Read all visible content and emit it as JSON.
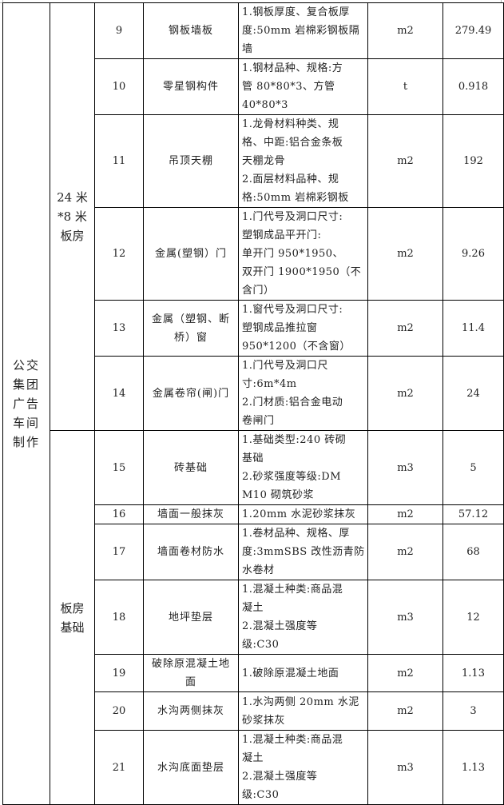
{
  "group": "公交\n集团\n广告\n车间\n制作",
  "subgroups": [
    {
      "label": "24 米\n*8 米\n板房",
      "rows": 6
    },
    {
      "label": "板房\n基础",
      "rows": 7
    }
  ],
  "rows": [
    {
      "no": "9",
      "name": "钢板墙板",
      "desc": "1.钢板厚度、复合板厚\n度:50mm 岩棉彩钢板隔\n墙",
      "unit": "m2",
      "qty": "279.49"
    },
    {
      "no": "10",
      "name": "零星钢构件",
      "desc": "1.钢材品种、规格:方\n管 80*80*3、方管\n40*80*3",
      "unit": "t",
      "qty": "0.918"
    },
    {
      "no": "11",
      "name": "吊顶天棚",
      "desc": "1.龙骨材料种类、规\n格、中距:铝合金条板\n天棚龙骨\n2.面层材料品种、规\n格:50mm 岩棉彩钢板",
      "unit": "m2",
      "qty": "192"
    },
    {
      "no": "12",
      "name": "金属(塑钢）门",
      "desc": "1.门代号及洞口尺寸:\n塑钢成品平开门:\n单开门 950*1950、\n双开门 1900*1950（不\n含门）",
      "unit": "m2",
      "qty": "9.26"
    },
    {
      "no": "13",
      "name": "金属（塑钢、断\n桥）窗",
      "desc": "1.窗代号及洞口尺寸:\n塑钢成品推拉窗\n950*1200（不含窗）",
      "unit": "m2",
      "qty": "11.4"
    },
    {
      "no": "14",
      "name": "金属卷帘(闸)门",
      "desc": "1.门代号及洞口尺\n寸:6m*4m\n2.门材质:铝合金电动\n卷闸门",
      "unit": "m2",
      "qty": "24"
    },
    {
      "no": "15",
      "name": "砖基础",
      "desc": "1.基础类型:240 砖砌\n基础\n2.砂浆强度等级:DM\nM10 砌筑砂浆",
      "unit": "m3",
      "qty": "5"
    },
    {
      "no": "16",
      "name": "墙面一般抹灰",
      "desc": "1.20mm 水泥砂浆抹灰",
      "unit": "m2",
      "qty": "57.12"
    },
    {
      "no": "17",
      "name": "墙面卷材防水",
      "desc": "1.卷材品种、规格、厚\n度:3mmSBS 改性沥青防\n水卷材",
      "unit": "m2",
      "qty": "68"
    },
    {
      "no": "18",
      "name": "地坪垫层",
      "desc": "1.混凝土种类:商品混\n凝土\n2.混凝土强度等\n级:C30",
      "unit": "m3",
      "qty": "12"
    },
    {
      "no": "19",
      "name": "破除原混凝土地\n面",
      "desc": "1.破除原混凝土地面",
      "unit": "m2",
      "qty": "1.13"
    },
    {
      "no": "20",
      "name": "水沟两侧抹灰",
      "desc": "1.水沟两侧 20mm 水泥\n砂浆抹灰",
      "unit": "m2",
      "qty": "3"
    },
    {
      "no": "21",
      "name": "水沟底面垫层",
      "desc": "1.混凝土种类:商品混\n凝土\n2.混凝土强度等\n级:C30",
      "unit": "m3",
      "qty": "1.13"
    }
  ]
}
